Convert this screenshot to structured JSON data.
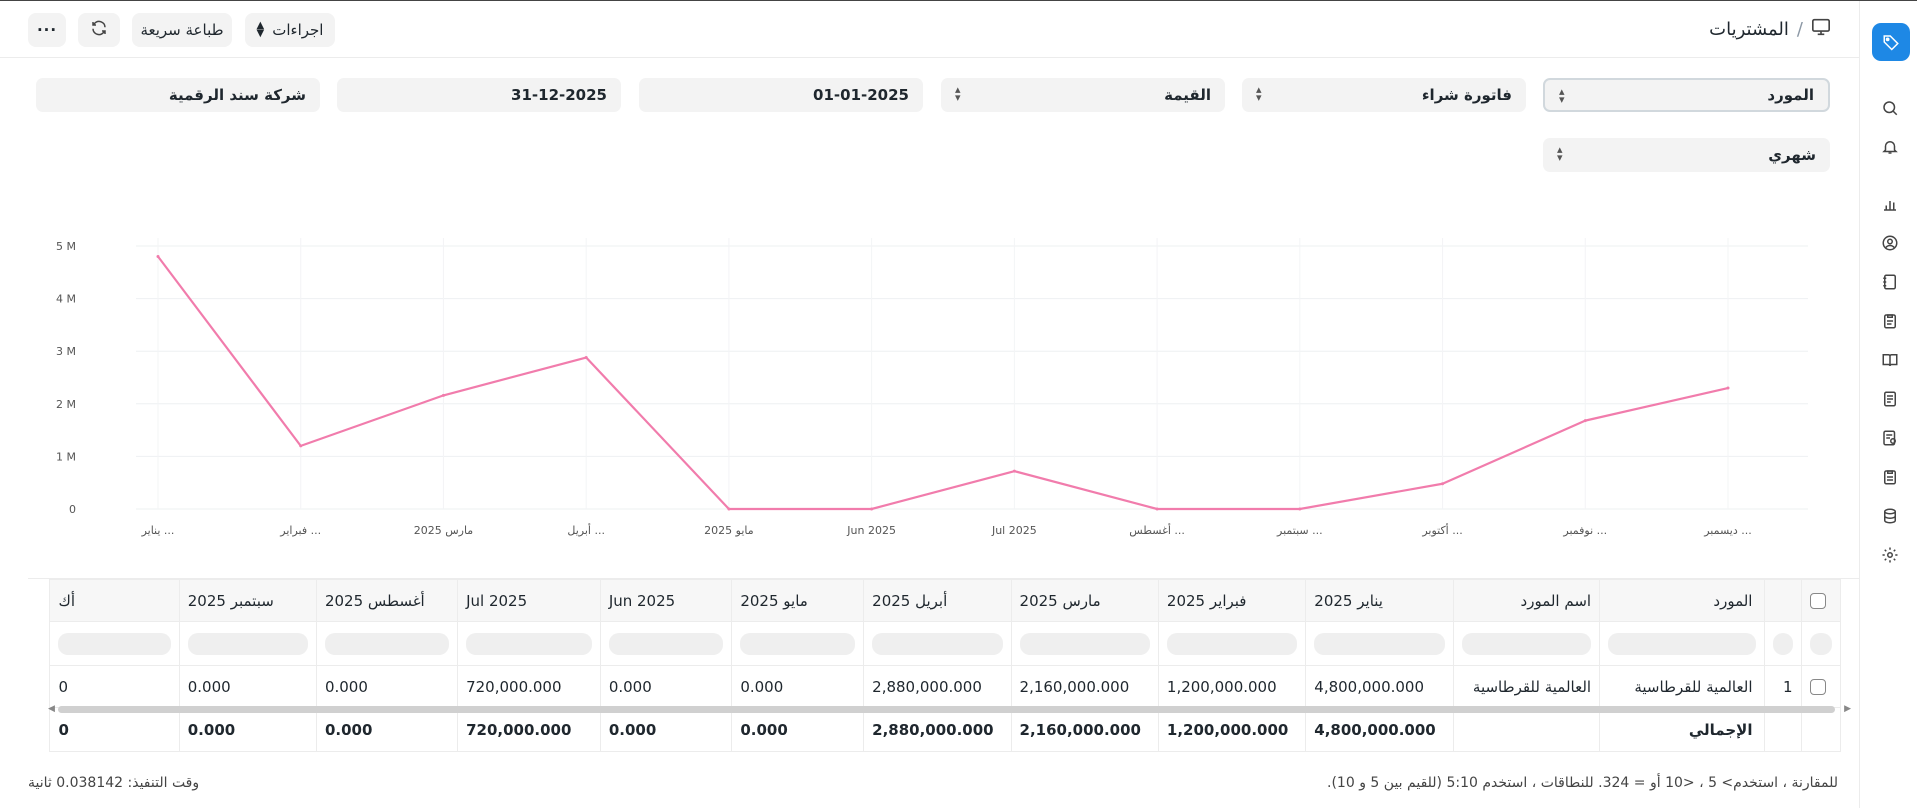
{
  "header": {
    "breadcrumb_title": "المشتريات",
    "breadcrumb_sep": "/",
    "actions_label": "اجراءات",
    "quick_print_label": "طباعة سريعة",
    "more_label": "···"
  },
  "filters": {
    "group_by": "المورد",
    "document_type": "فاتورة شراء",
    "value_type": "القيمة",
    "from_date": "01-01-2025",
    "to_date": "31-12-2025",
    "company": "شركة سند الرقمية",
    "period": "شهري"
  },
  "chart_data": {
    "type": "line",
    "categories": [
      "يناير ...",
      "فبراير ...",
      "مارس 2025",
      "أبريل ...",
      "مايو 2025",
      "Jun 2025",
      "Jul 2025",
      "أغسطس ...",
      "سبتمبر ...",
      "أكتوبر ...",
      "نوفمبر ...",
      "ديسمبر ..."
    ],
    "series": [
      {
        "values": [
          4800000,
          1200000,
          2160000,
          2880000,
          0,
          0,
          720000,
          0,
          0,
          480000,
          1680000,
          2300000
        ],
        "color": "#f17cac"
      }
    ],
    "y_ticks": [
      "0",
      "1 M",
      "2 M",
      "3 M",
      "4 M",
      "5 M"
    ],
    "ylim": [
      0,
      5000000
    ],
    "grid": true
  },
  "table": {
    "columns": [
      "المورد",
      "اسم المورد",
      "يناير 2025",
      "فبراير 2025",
      "مارس 2025",
      "أبريل 2025",
      "مايو 2025",
      "Jun 2025",
      "Jul 2025",
      "أغسطس 2025",
      "سبتمبر 2025",
      "أك"
    ],
    "row_index": "1",
    "row": [
      "العالمية للقرطاسية",
      "العالمية للقرطاسية",
      "4,800,000.000",
      "1,200,000.000",
      "2,160,000.000",
      "2,880,000.000",
      "0.000",
      "0.000",
      "720,000.000",
      "0.000",
      "0.000",
      "0"
    ],
    "total_label": "الإجمالي",
    "totals": [
      "4,800,000.000",
      "1,200,000.000",
      "2,160,000.000",
      "2,880,000.000",
      "0.000",
      "0.000",
      "720,000.000",
      "0.000",
      "0.000",
      "0"
    ]
  },
  "footer": {
    "hint": "للمقارنة ، استخدم> 5 ، <10 أو = 324. للنطاقات ، استخدم 5:10 (للقيم بين 5 و 10).",
    "exec_time": "وقت التنفيذ: 0.038142 ثانية"
  },
  "sidebar_icons": [
    "tag-icon",
    "search-icon",
    "bell-icon",
    "chart-icon",
    "user-icon",
    "notebook-icon",
    "clipboard-icon",
    "book-icon",
    "document-icon",
    "report-icon",
    "checklist-icon",
    "database-icon",
    "gear-icon"
  ]
}
